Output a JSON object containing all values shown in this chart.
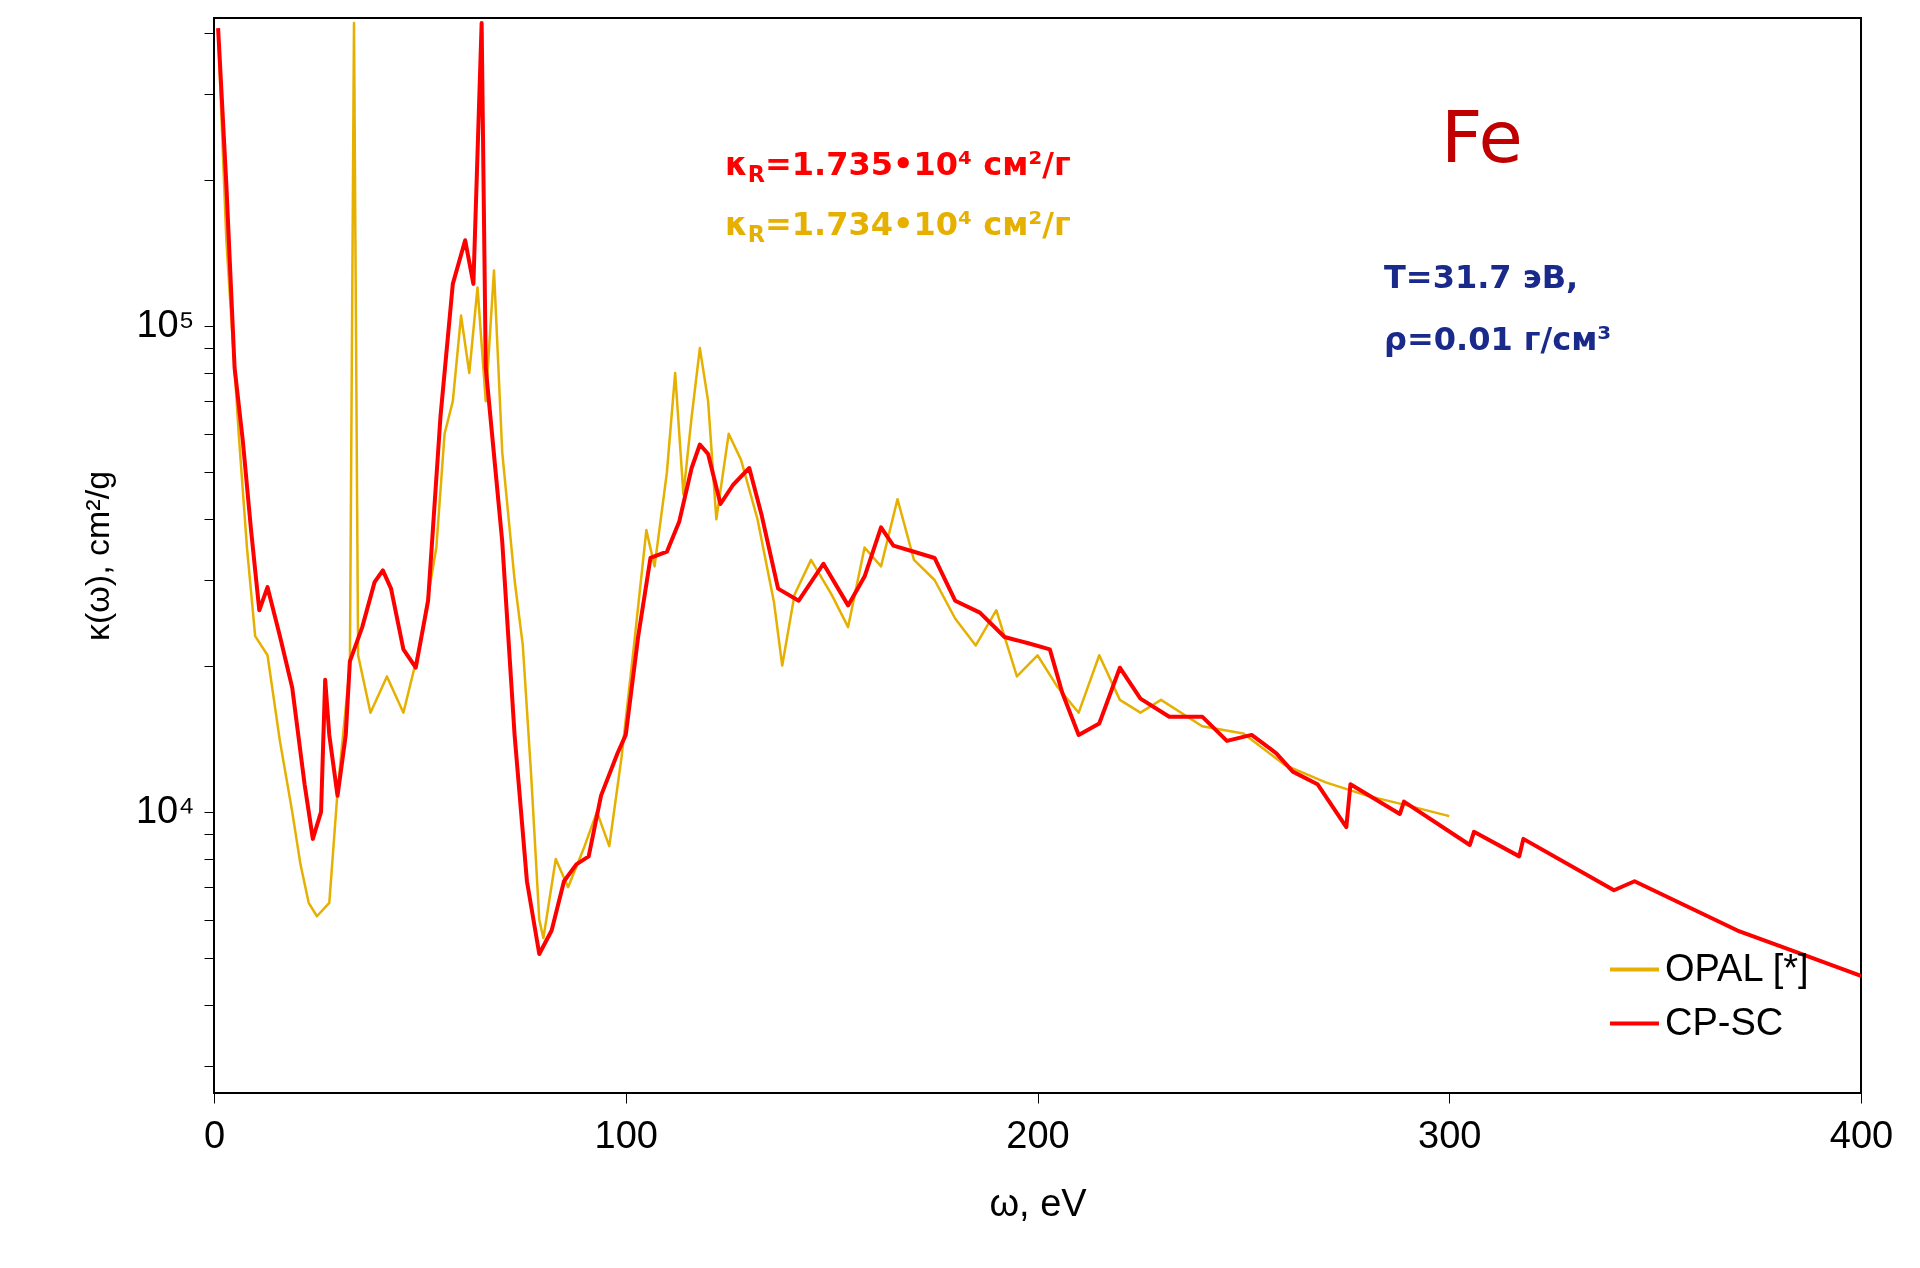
{
  "chart_data": {
    "type": "line",
    "xlabel": "ω, eV",
    "ylabel": "κ(ω), cm²/g",
    "log": "y",
    "grid": false,
    "legend": "bottom right",
    "line_style": "solid",
    "marker": "none",
    "xlim": [
      0,
      400
    ],
    "xticks": [
      0,
      100,
      200,
      300,
      400
    ],
    "ylim": [
      2640,
      430000
    ],
    "yticks": [
      {
        "value": 3000,
        "label": null
      },
      {
        "value": 4000,
        "label": null
      },
      {
        "value": 5000,
        "label": null
      },
      {
        "value": 6000,
        "label": null
      },
      {
        "value": 7000,
        "label": null
      },
      {
        "value": 8000,
        "label": null
      },
      {
        "value": 9000,
        "label": null
      },
      {
        "value": 10000,
        "label": "10⁴"
      },
      {
        "value": 20000,
        "label": null
      },
      {
        "value": 30000,
        "label": null
      },
      {
        "value": 40000,
        "label": null
      },
      {
        "value": 50000,
        "label": null
      },
      {
        "value": 60000,
        "label": null
      },
      {
        "value": 70000,
        "label": null
      },
      {
        "value": 80000,
        "label": null
      },
      {
        "value": 90000,
        "label": null
      },
      {
        "value": 100000,
        "label": "10⁵"
      },
      {
        "value": 200000,
        "label": null
      },
      {
        "value": 300000,
        "label": null
      },
      {
        "value": 400000,
        "label": null
      }
    ],
    "annotations": [
      "Fe",
      "κ$_{R}$=1.735•10⁴ см²/г",
      "κ$_{R}$=1.734•10⁴ см²/г",
      "T=31.7 эВ,",
      "ρ=0.01 г/см³"
    ],
    "series": [
      {
        "name": "OPAL [*]",
        "color": "#e6b000",
        "x": [
          1,
          3,
          6,
          8,
          10,
          13,
          16,
          19,
          21,
          23,
          25,
          28,
          30,
          33,
          34,
          35,
          38,
          42,
          46,
          50,
          54,
          56,
          58,
          60,
          62,
          64,
          66,
          68,
          70,
          73,
          75,
          77,
          79,
          80,
          83,
          86,
          90,
          93,
          96,
          99,
          102,
          105,
          107,
          110,
          112,
          114,
          116,
          118,
          120,
          122,
          125,
          128,
          132,
          136,
          138,
          141,
          145,
          150,
          154,
          158,
          162,
          166,
          170,
          175,
          180,
          185,
          190,
          195,
          200,
          205,
          210,
          215,
          220,
          225,
          230,
          240,
          250,
          260,
          270,
          280,
          290,
          300
        ],
        "values": [
          400000,
          150000,
          60000,
          35000,
          23000,
          21000,
          14000,
          10000,
          7800,
          6500,
          6100,
          6500,
          11000,
          20000,
          420000,
          21000,
          16000,
          19000,
          16000,
          22000,
          35000,
          60000,
          70000,
          105000,
          80000,
          120000,
          70000,
          130000,
          55000,
          30000,
          22000,
          12000,
          6000,
          5500,
          8000,
          7000,
          8500,
          10000,
          8500,
          13000,
          22000,
          38000,
          32000,
          50000,
          80000,
          45000,
          65000,
          90000,
          70000,
          40000,
          60000,
          53000,
          40000,
          27000,
          20000,
          28000,
          33000,
          28000,
          24000,
          35000,
          32000,
          44000,
          33000,
          30000,
          25000,
          22000,
          26000,
          19000,
          21000,
          18000,
          16000,
          21000,
          17000,
          16000,
          17000,
          15000,
          14500,
          12500,
          11500,
          10800,
          10300,
          9800
        ]
      },
      {
        "name": "CP-SC",
        "color": "#ff0000",
        "x": [
          1,
          3,
          5,
          7,
          9,
          11,
          13,
          16,
          19,
          22,
          24,
          26,
          27,
          28,
          30,
          32,
          33,
          36,
          39,
          41,
          43,
          46,
          49,
          52,
          55,
          58,
          61,
          63,
          65,
          66,
          70,
          73,
          76,
          79,
          82,
          85,
          88,
          91,
          94,
          98,
          100,
          103,
          106,
          110,
          113,
          116,
          118,
          120,
          123,
          126,
          130,
          133,
          137,
          142,
          148,
          154,
          158,
          162,
          165,
          170,
          175,
          180,
          186,
          192,
          198,
          203,
          206,
          210,
          215,
          220,
          225,
          232,
          240,
          246,
          252,
          258,
          262,
          268,
          275,
          276,
          288,
          289,
          305,
          306,
          317,
          318,
          340,
          345,
          370,
          400
        ],
        "values": [
          410000,
          195000,
          82000,
          58000,
          38000,
          26000,
          29000,
          23000,
          18000,
          11400,
          8800,
          10000,
          18700,
          14400,
          10800,
          14400,
          20400,
          24000,
          29700,
          31400,
          28800,
          21600,
          19800,
          27200,
          65000,
          122000,
          150000,
          122000,
          420000,
          82000,
          36000,
          14400,
          7200,
          5100,
          5700,
          7200,
          7800,
          8100,
          10800,
          13200,
          14400,
          22900,
          33300,
          34300,
          39600,
          51000,
          57000,
          54500,
          43000,
          47000,
          51000,
          40800,
          28800,
          27200,
          32400,
          26600,
          30500,
          38500,
          35300,
          34300,
          33300,
          27200,
          25700,
          22900,
          22200,
          21600,
          17600,
          14400,
          15200,
          19800,
          17100,
          15700,
          15700,
          14000,
          14400,
          13200,
          12100,
          11400,
          9300,
          11400,
          9900,
          10500,
          8550,
          9100,
          8100,
          8800,
          6900,
          7200,
          5700,
          4600
        ]
      }
    ]
  }
}
